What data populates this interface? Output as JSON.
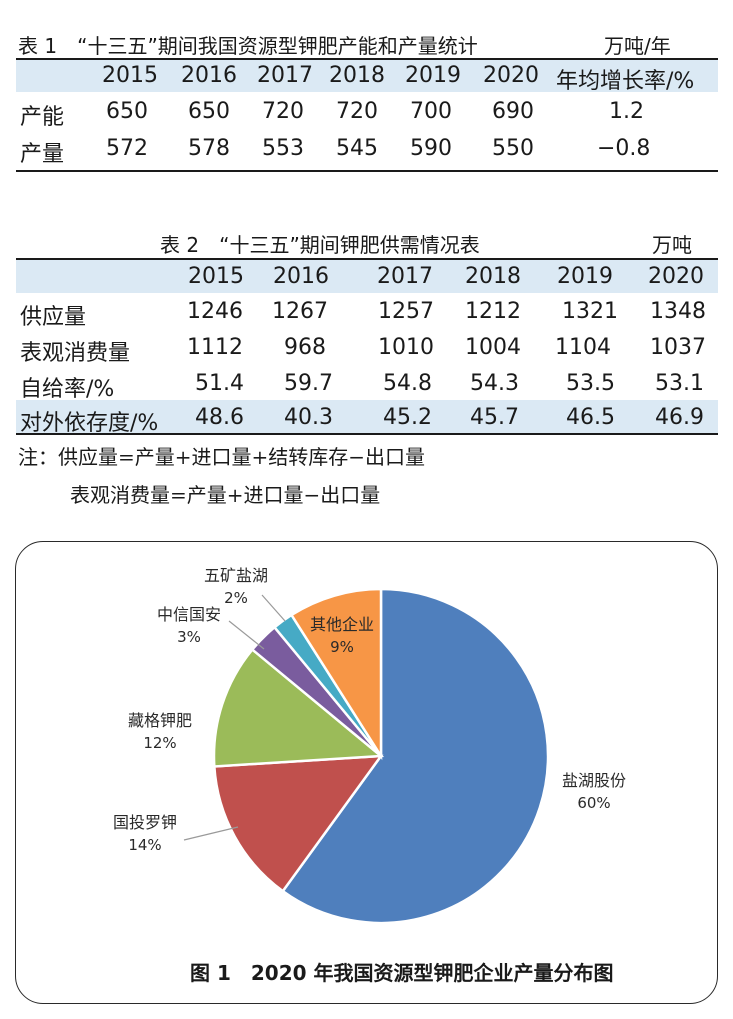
{
  "table1": {
    "title": "表 1　“十三五”期间我国资源型钾肥产能和产量统计",
    "unit": "万吨/年",
    "columns": [
      "",
      "2015",
      "2016",
      "2017",
      "2018",
      "2019",
      "2020",
      "年均增长率/%"
    ],
    "rows": [
      {
        "label": "产能",
        "values": [
          "650",
          "650",
          "720",
          "720",
          "700",
          "690",
          "1.2"
        ]
      },
      {
        "label": "产量",
        "values": [
          "572",
          "578",
          "553",
          "545",
          "590",
          "550",
          "−0.8"
        ]
      }
    ]
  },
  "table2": {
    "title": "表 2　“十三五”期间钾肥供需情况表",
    "unit": "万吨",
    "columns": [
      "",
      "2015",
      "2016",
      "2017",
      "2018",
      "2019",
      "2020"
    ],
    "rows": [
      {
        "label": "供应量",
        "values": [
          "1246",
          "1267",
          "1257",
          "1212",
          "1321",
          "1348"
        ]
      },
      {
        "label": "表观消费量",
        "values": [
          "1112",
          "968",
          "1010",
          "1004",
          "1104",
          "1037"
        ]
      },
      {
        "label": "自给率/%",
        "values": [
          "51.4",
          "59.7",
          "54.8",
          "54.3",
          "53.5",
          "53.1"
        ]
      },
      {
        "label": "对外依存度/%",
        "values": [
          "48.6",
          "40.3",
          "45.2",
          "45.7",
          "46.5",
          "46.9"
        ]
      }
    ],
    "notes": [
      "注：供应量=产量+进口量+结转库存−出口量",
      "表观消费量=产量+进口量−出口量"
    ]
  },
  "figure": {
    "caption": "图 1　2020 年我国资源型钾肥企业产量分布图"
  },
  "chart_data": {
    "type": "pie",
    "title": "",
    "slices": [
      {
        "label": "盐湖股份",
        "value": 60,
        "display": "60%",
        "color": "#4f7fbd"
      },
      {
        "label": "国投罗钾",
        "value": 14,
        "display": "14%",
        "color": "#c0504d"
      },
      {
        "label": "藏格钾肥",
        "value": 12,
        "display": "12%",
        "color": "#9bbb59"
      },
      {
        "label": "中信国安",
        "value": 3,
        "display": "3%",
        "color": "#7a5c9e"
      },
      {
        "label": "五矿盐湖",
        "value": 2,
        "display": "2%",
        "color": "#46aac5"
      },
      {
        "label": "其他企业",
        "value": 9,
        "display": "9%",
        "color": "#f79646"
      }
    ]
  }
}
